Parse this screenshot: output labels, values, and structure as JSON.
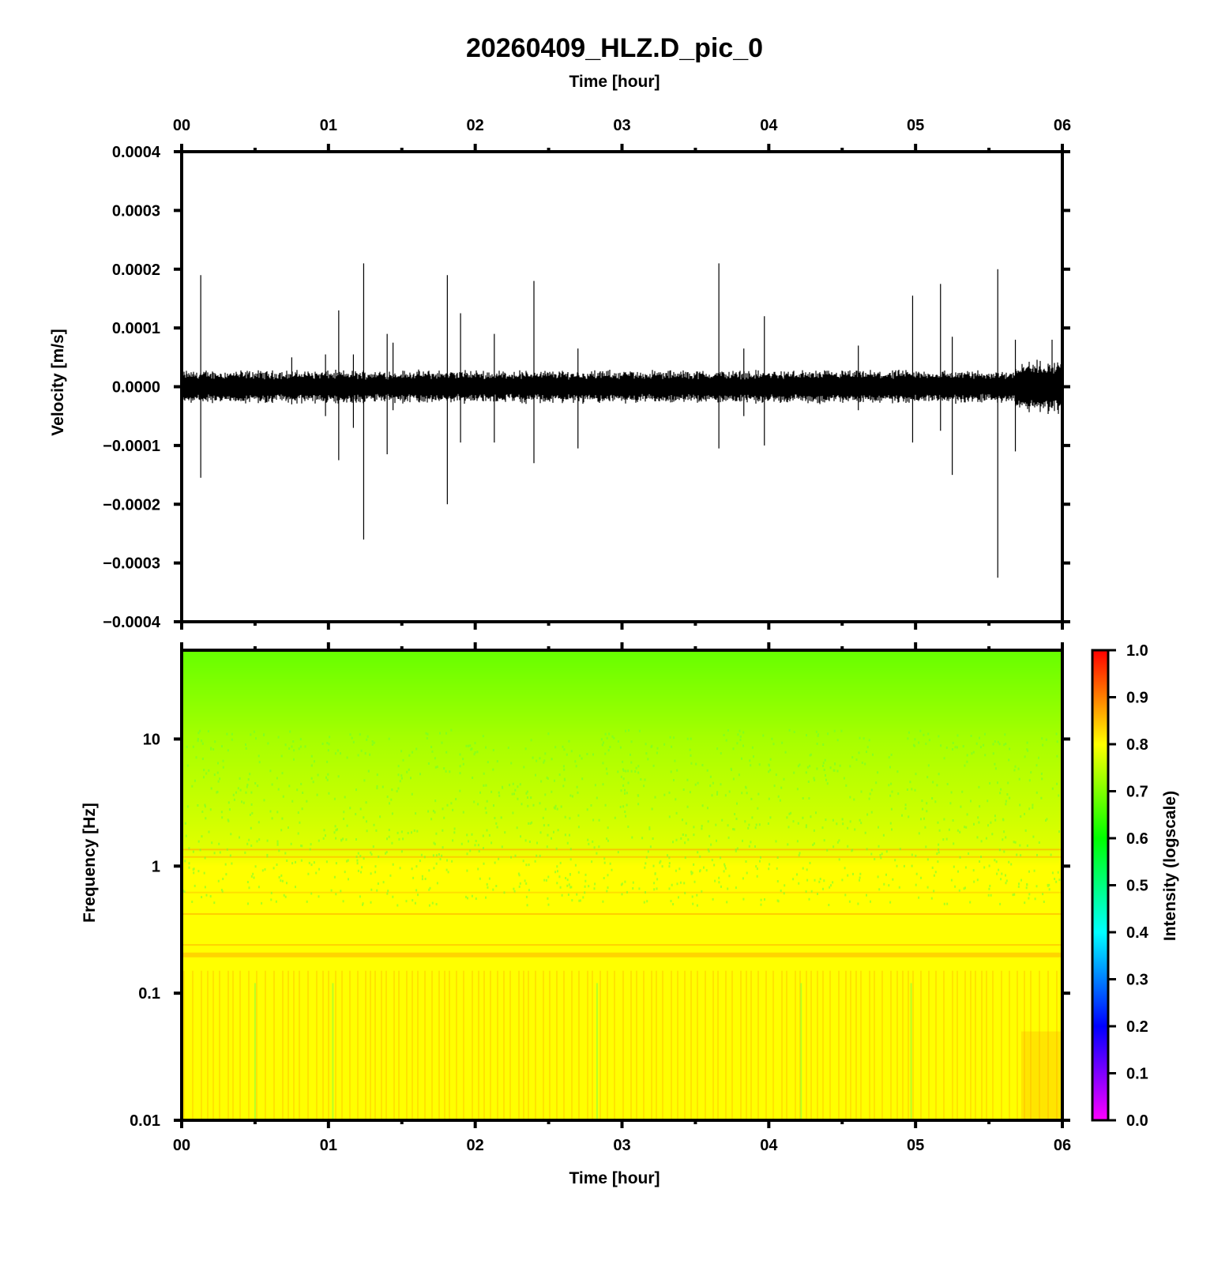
{
  "title": "20260409_HLZ.D_pic_0",
  "top_axis_label": "Time [hour]",
  "bottom_axis_label": "Time [hour]",
  "colors": {
    "trace": "#000000",
    "spectrogram_low_band": "#ffff00",
    "spectrogram_high_band": "#66ff00"
  },
  "chart_data": [
    {
      "type": "line",
      "name": "waveform",
      "xlabel": "Time [hour]",
      "ylabel": "Velocity [m/s]",
      "xlim": [
        0,
        6
      ],
      "ylim": [
        -0.0004,
        0.0004
      ],
      "x_ticks": [
        "00",
        "01",
        "02",
        "03",
        "04",
        "05",
        "06"
      ],
      "y_ticks": [
        "0.0004",
        "0.0003",
        "0.0002",
        "0.0001",
        "0.0000",
        "−0.0001",
        "−0.0002",
        "−0.0003",
        "−0.0004"
      ],
      "background_noise_amplitude": 2e-05,
      "spikes": [
        {
          "x": 0.13,
          "ymax": 0.00019,
          "ymin": -0.000155
        },
        {
          "x": 0.75,
          "ymax": 5e-05,
          "ymin": -3e-05
        },
        {
          "x": 0.98,
          "ymax": 5.5e-05,
          "ymin": -5e-05
        },
        {
          "x": 1.07,
          "ymax": 0.00013,
          "ymin": -0.000125
        },
        {
          "x": 1.17,
          "ymax": 5.5e-05,
          "ymin": -7e-05
        },
        {
          "x": 1.24,
          "ymax": 0.00021,
          "ymin": -0.00026
        },
        {
          "x": 1.4,
          "ymax": 9e-05,
          "ymin": -0.000115
        },
        {
          "x": 1.44,
          "ymax": 7.5e-05,
          "ymin": -4e-05
        },
        {
          "x": 1.81,
          "ymax": 0.00019,
          "ymin": -0.0002
        },
        {
          "x": 1.9,
          "ymax": 0.000125,
          "ymin": -9.5e-05
        },
        {
          "x": 2.13,
          "ymax": 9e-05,
          "ymin": -9.5e-05
        },
        {
          "x": 2.4,
          "ymax": 0.00018,
          "ymin": -0.00013
        },
        {
          "x": 2.7,
          "ymax": 6.5e-05,
          "ymin": -0.000105
        },
        {
          "x": 3.66,
          "ymax": 0.00021,
          "ymin": -0.000105
        },
        {
          "x": 3.83,
          "ymax": 6.5e-05,
          "ymin": -5e-05
        },
        {
          "x": 3.97,
          "ymax": 0.00012,
          "ymin": -0.0001
        },
        {
          "x": 4.61,
          "ymax": 7e-05,
          "ymin": -4e-05
        },
        {
          "x": 4.98,
          "ymax": 0.000155,
          "ymin": -9.5e-05
        },
        {
          "x": 5.17,
          "ymax": 0.000175,
          "ymin": -7.5e-05
        },
        {
          "x": 5.25,
          "ymax": 8.5e-05,
          "ymin": -0.00015
        },
        {
          "x": 5.56,
          "ymax": 0.0002,
          "ymin": -0.000325
        },
        {
          "x": 5.68,
          "ymax": 8e-05,
          "ymin": -0.00011
        },
        {
          "x": 5.93,
          "ymax": 8e-05,
          "ymin": -3e-05
        }
      ]
    },
    {
      "type": "heatmap",
      "name": "spectrogram",
      "xlabel": "Time [hour]",
      "ylabel": "Frequency [Hz]",
      "xlim": [
        0,
        6
      ],
      "ylim": [
        0.01,
        50
      ],
      "y_scale": "log",
      "x_ticks": [
        "00",
        "01",
        "02",
        "03",
        "04",
        "05",
        "06"
      ],
      "y_ticks": [
        "10",
        "1",
        "0.1",
        "0.01"
      ],
      "colorbar": {
        "label": "Intensity (logscale)",
        "range": [
          0.0,
          1.0
        ],
        "ticks": [
          "1.0",
          "0.9",
          "0.8",
          "0.7",
          "0.6",
          "0.5",
          "0.4",
          "0.3",
          "0.2",
          "0.1",
          "0.0"
        ],
        "colormap": [
          "#ff00ff",
          "#0000ff",
          "#00ffff",
          "#00ff00",
          "#ffff00",
          "#ff0000"
        ]
      },
      "intensity_profile": [
        {
          "freq_hz": 50,
          "intensity": 0.62
        },
        {
          "freq_hz": 10,
          "intensity": 0.7
        },
        {
          "freq_hz": 3,
          "intensity": 0.74
        },
        {
          "freq_hz": 1.3,
          "intensity": 0.82
        },
        {
          "freq_hz": 1,
          "intensity": 0.76
        },
        {
          "freq_hz": 0.4,
          "intensity": 0.8
        },
        {
          "freq_hz": 0.2,
          "intensity": 0.84
        },
        {
          "freq_hz": 0.1,
          "intensity": 0.8
        },
        {
          "freq_hz": 0.01,
          "intensity": 0.81
        }
      ]
    }
  ]
}
